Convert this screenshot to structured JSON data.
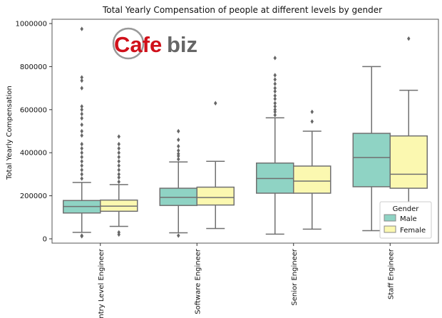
{
  "chart_data": {
    "type": "box",
    "title": "Total Yearly Compensation of people at different levels by gender",
    "xlabel": "",
    "ylabel": "Total Yearly Compensation",
    "ylim": [
      -20000,
      1020000
    ],
    "yticks": [
      0,
      200000,
      400000,
      600000,
      800000,
      1000000
    ],
    "ytick_labels": [
      "0",
      "200000",
      "400000",
      "600000",
      "800000",
      "1000000"
    ],
    "grid": false,
    "legend_position": "bottom-right",
    "legend_title": "Gender",
    "categories": [
      "Entry Level Engineer",
      "Software Engineer",
      "Senior Engineer",
      "Staff Engineer"
    ],
    "series": [
      {
        "name": "Male",
        "color": "#8fd3c4",
        "boxes": [
          {
            "whisker_low": 30000,
            "q1": 120000,
            "median": 150000,
            "q3": 178000,
            "whisker_high": 262000,
            "outliers": [
              15000,
              12000,
              280000,
              300000,
              320000,
              340000,
              360000,
              380000,
              400000,
              420000,
              440000,
              480000,
              500000,
              530000,
              560000,
              580000,
              600000,
              615000,
              700000,
              735000,
              750000,
              975000
            ]
          },
          {
            "whisker_low": 28000,
            "q1": 155000,
            "median": 193000,
            "q3": 235000,
            "whisker_high": 357000,
            "outliers": [
              15000,
              370000,
              385000,
              395000,
              410000,
              430000,
              460000,
              500000
            ]
          },
          {
            "whisker_low": 22000,
            "q1": 212000,
            "median": 280000,
            "q3": 352000,
            "whisker_high": 562000,
            "outliers": [
              575000,
              590000,
              600000,
              615000,
              630000,
              650000,
              665000,
              685000,
              700000,
              720000,
              740000,
              760000,
              840000
            ]
          },
          {
            "whisker_low": 38000,
            "q1": 242000,
            "median": 378000,
            "q3": 490000,
            "whisker_high": 800000,
            "outliers": []
          }
        ]
      },
      {
        "name": "Female",
        "color": "#fbf8b0",
        "boxes": [
          {
            "whisker_low": 58000,
            "q1": 128000,
            "median": 152000,
            "q3": 180000,
            "whisker_high": 252000,
            "outliers": [
              20000,
              30000,
              265000,
              285000,
              300000,
              320000,
              340000,
              360000,
              380000,
              400000,
              420000,
              440000,
              475000
            ]
          },
          {
            "whisker_low": 48000,
            "q1": 157000,
            "median": 192000,
            "q3": 240000,
            "whisker_high": 360000,
            "outliers": [
              630000
            ]
          },
          {
            "whisker_low": 45000,
            "q1": 212000,
            "median": 268000,
            "q3": 338000,
            "whisker_high": 500000,
            "outliers": [
              545000,
              590000
            ]
          },
          {
            "whisker_low": 148000,
            "q1": 235000,
            "median": 300000,
            "q3": 478000,
            "whisker_high": 690000,
            "outliers": [
              930000
            ]
          }
        ]
      }
    ]
  },
  "logo": {
    "text_left": "Cafe",
    "text_right": "biz",
    "red": "#d0101a",
    "gray": "#666666"
  }
}
